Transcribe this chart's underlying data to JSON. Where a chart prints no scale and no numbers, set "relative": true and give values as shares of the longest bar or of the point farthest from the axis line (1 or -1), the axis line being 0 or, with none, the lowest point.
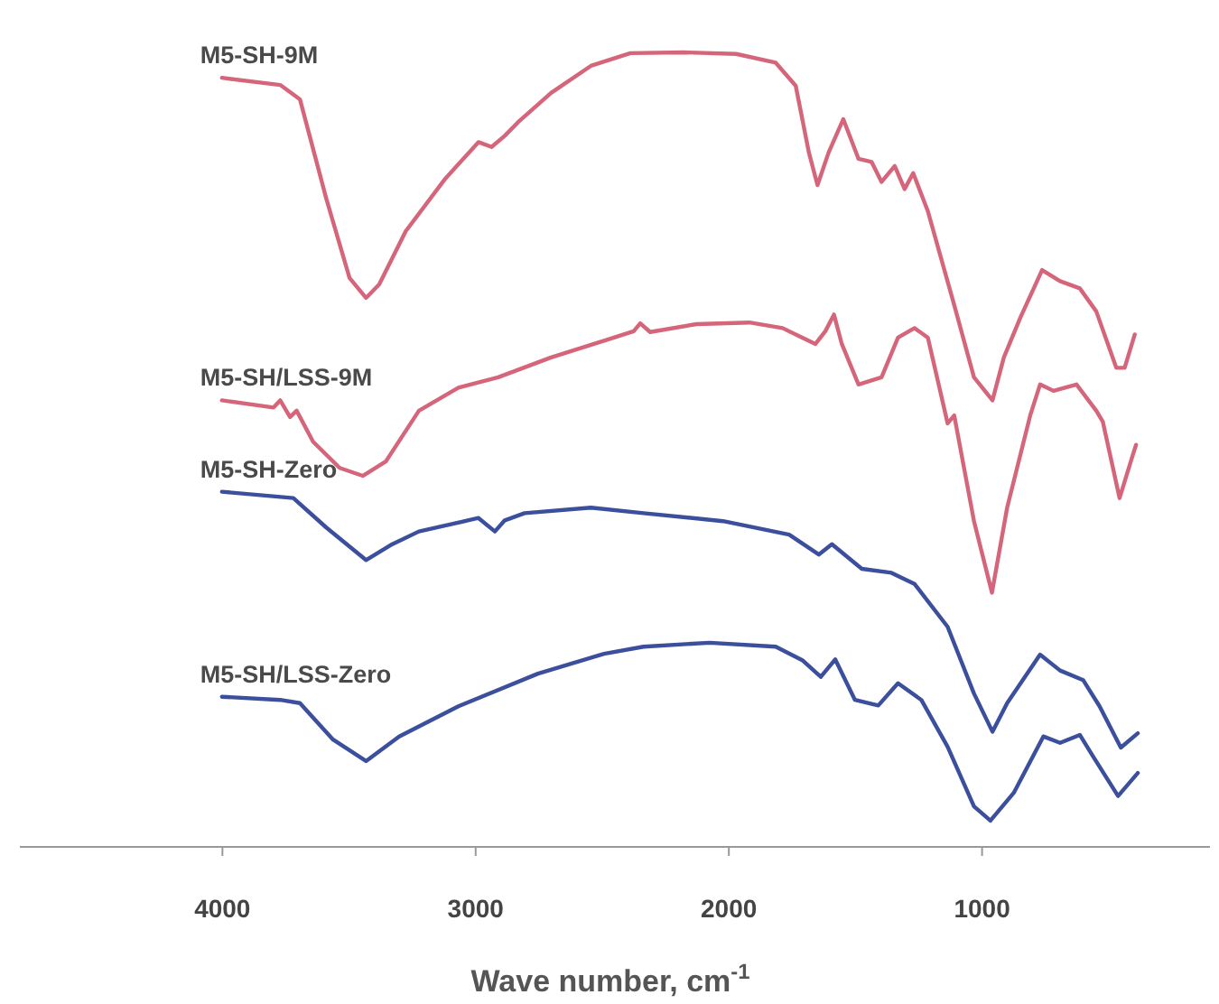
{
  "chart_data": {
    "type": "line",
    "relative": true,
    "xlabel": "Wave number, cm$^{-1}$",
    "xlim": [
      4800,
      100
    ],
    "xticks": [
      4000,
      3000,
      2000,
      1000
    ],
    "grid": false,
    "marker": "none",
    "line_style": "solid",
    "series": [
      {
        "name": "M5-SH-9M",
        "color": "#d5657a",
        "x": [
          4002,
          3772,
          3694,
          3590,
          3498,
          3433,
          3381,
          3276,
          3120,
          2989,
          2937,
          2885,
          2833,
          2702,
          2545,
          2389,
          2180,
          1971,
          1815,
          1736,
          1684,
          1650,
          1606,
          1548,
          1488,
          1436,
          1397,
          1345,
          1306,
          1272,
          1214,
          1110,
          1032,
          959,
          914,
          849,
          763,
          692,
          614,
          549,
          470,
          437,
          397
        ],
        "values": [
          0.968,
          0.959,
          0.941,
          0.816,
          0.716,
          0.691,
          0.708,
          0.775,
          0.841,
          0.887,
          0.881,
          0.895,
          0.912,
          0.949,
          0.983,
          0.999,
          1.0,
          0.998,
          0.987,
          0.958,
          0.874,
          0.833,
          0.874,
          0.916,
          0.866,
          0.862,
          0.837,
          0.857,
          0.828,
          0.848,
          0.8,
          0.682,
          0.591,
          0.562,
          0.616,
          0.666,
          0.726,
          0.712,
          0.703,
          0.674,
          0.603,
          0.603,
          0.645
        ]
      },
      {
        "name": "M5-SH/LSS-9M",
        "color": "#d5657a",
        "x": [
          4002,
          3798,
          3772,
          3733,
          3707,
          3642,
          3537,
          3446,
          3355,
          3224,
          3068,
          2911,
          2702,
          2493,
          2376,
          2350,
          2311,
          2128,
          1919,
          1788,
          1710,
          1658,
          1619,
          1585,
          1554,
          1488,
          1397,
          1332,
          1267,
          1214,
          1136,
          1110,
          1032,
          961,
          901,
          810,
          771,
          718,
          627,
          549,
          523,
          457,
          405,
          392
        ],
        "values": [
          0.562,
          0.553,
          0.562,
          0.541,
          0.549,
          0.51,
          0.477,
          0.467,
          0.485,
          0.549,
          0.578,
          0.591,
          0.616,
          0.637,
          0.649,
          0.659,
          0.648,
          0.658,
          0.66,
          0.653,
          0.641,
          0.633,
          0.649,
          0.67,
          0.633,
          0.582,
          0.591,
          0.641,
          0.653,
          0.641,
          0.533,
          0.543,
          0.41,
          0.32,
          0.427,
          0.543,
          0.582,
          0.574,
          0.582,
          0.549,
          0.535,
          0.439,
          0.493,
          0.506
        ]
      },
      {
        "name": "M5-SH-Zero",
        "color": "#3b4f9c",
        "x": [
          4002,
          3720,
          3590,
          3433,
          3329,
          3224,
          2989,
          2924,
          2885,
          2807,
          2545,
          2337,
          2023,
          1762,
          1645,
          1593,
          1475,
          1358,
          1267,
          1136,
          1032,
          959,
          901,
          771,
          692,
          601,
          536,
          452,
          385
        ],
        "values": [
          0.447,
          0.439,
          0.402,
          0.361,
          0.381,
          0.397,
          0.414,
          0.397,
          0.411,
          0.42,
          0.427,
          0.42,
          0.41,
          0.393,
          0.368,
          0.381,
          0.35,
          0.345,
          0.331,
          0.277,
          0.193,
          0.145,
          0.181,
          0.242,
          0.222,
          0.21,
          0.177,
          0.125,
          0.143
        ]
      },
      {
        "name": "M5-SH/LSS-Zero",
        "color": "#3b4f9c",
        "x": [
          4002,
          3772,
          3694,
          3563,
          3433,
          3302,
          3068,
          2754,
          2493,
          2337,
          2076,
          1815,
          1710,
          1637,
          1580,
          1502,
          1410,
          1332,
          1240,
          1136,
          1032,
          967,
          875,
          758,
          692,
          614,
          562,
          463,
          385
        ],
        "values": [
          0.189,
          0.185,
          0.181,
          0.135,
          0.108,
          0.139,
          0.177,
          0.218,
          0.243,
          0.252,
          0.257,
          0.252,
          0.235,
          0.214,
          0.236,
          0.185,
          0.178,
          0.206,
          0.185,
          0.126,
          0.051,
          0.033,
          0.068,
          0.139,
          0.131,
          0.141,
          0.114,
          0.064,
          0.093
        ]
      }
    ]
  }
}
